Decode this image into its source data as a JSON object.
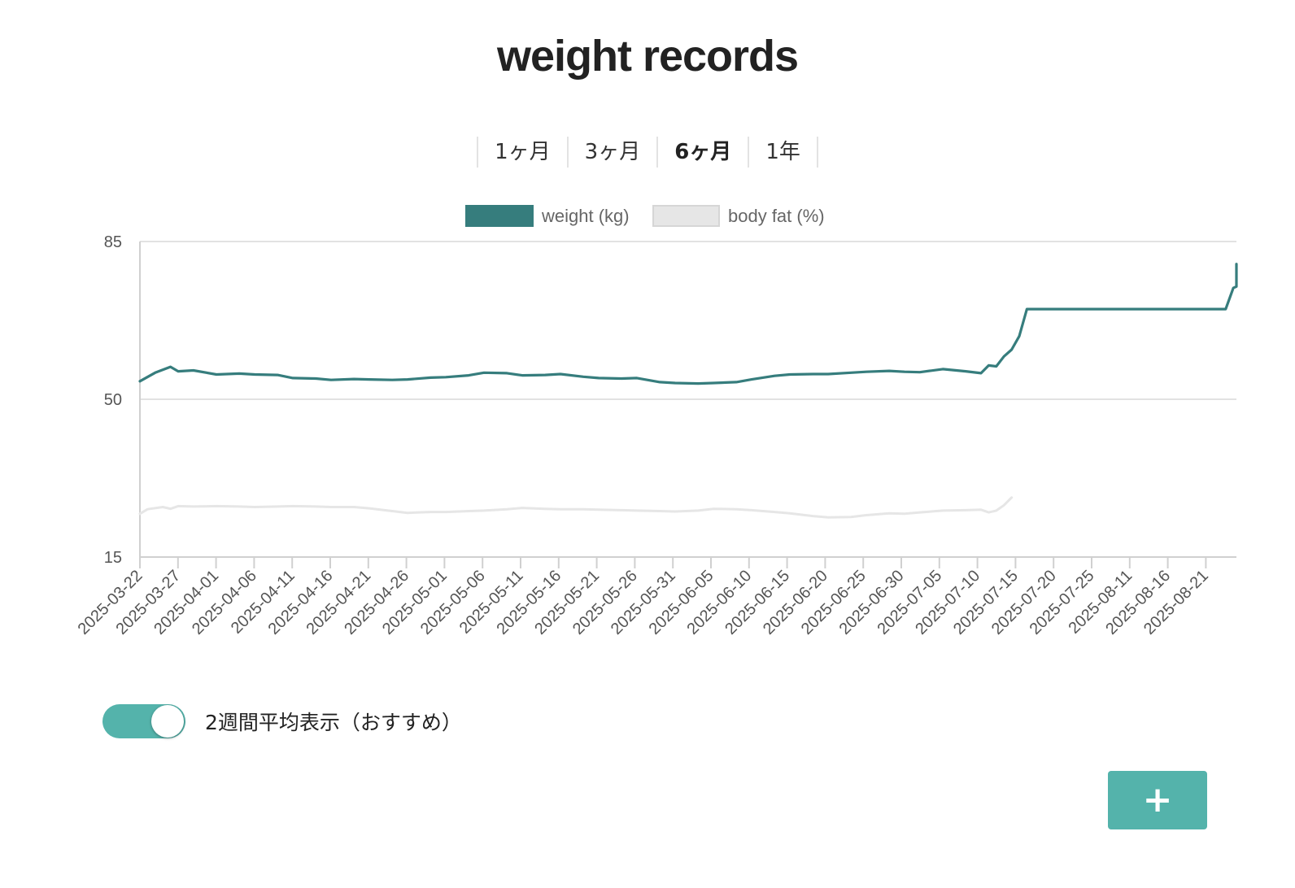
{
  "title": "weight records",
  "range_tabs": [
    {
      "label": "1ヶ月",
      "active": false
    },
    {
      "label": "3ヶ月",
      "active": false
    },
    {
      "label": "6ヶ月",
      "active": true
    },
    {
      "label": "1年",
      "active": false
    }
  ],
  "toggle": {
    "label": "2週間平均表示（おすすめ）",
    "on": true
  },
  "add_button": {
    "label": "+"
  },
  "colors": {
    "weight": "#367d7d",
    "body_fat": "#e6e6e6",
    "accent": "#54b3ab",
    "grid": "#e2e2e2"
  },
  "chart_data": {
    "type": "line",
    "title": "",
    "xlabel": "",
    "ylabel": "",
    "ylim": [
      15,
      85
    ],
    "yticks": [
      15,
      50,
      85
    ],
    "grid": true,
    "legend_position": "top",
    "x_tick_labels": [
      "2025-03-22",
      "2025-03-27",
      "2025-04-01",
      "2025-04-06",
      "2025-04-11",
      "2025-04-16",
      "2025-04-21",
      "2025-04-26",
      "2025-05-01",
      "2025-05-06",
      "2025-05-11",
      "2025-05-16",
      "2025-05-21",
      "2025-05-26",
      "2025-05-31",
      "2025-06-05",
      "2025-06-10",
      "2025-06-15",
      "2025-06-20",
      "2025-06-25",
      "2025-06-30",
      "2025-07-05",
      "2025-07-10",
      "2025-07-15",
      "2025-07-20",
      "2025-07-25",
      "2025-08-11",
      "2025-08-16",
      "2025-08-21"
    ],
    "series": [
      {
        "name": "weight (kg)",
        "points": [
          [
            "2025-03-22",
            54.0
          ],
          [
            "2025-03-24",
            55.9
          ],
          [
            "2025-03-26",
            57.2
          ],
          [
            "2025-03-27",
            56.2
          ],
          [
            "2025-03-29",
            56.4
          ],
          [
            "2025-04-01",
            55.5
          ],
          [
            "2025-04-04",
            55.7
          ],
          [
            "2025-04-06",
            55.5
          ],
          [
            "2025-04-09",
            55.4
          ],
          [
            "2025-04-11",
            54.7
          ],
          [
            "2025-04-14",
            54.6
          ],
          [
            "2025-04-16",
            54.3
          ],
          [
            "2025-04-19",
            54.5
          ],
          [
            "2025-04-21",
            54.4
          ],
          [
            "2025-04-24",
            54.3
          ],
          [
            "2025-04-26",
            54.4
          ],
          [
            "2025-04-29",
            54.8
          ],
          [
            "2025-05-01",
            54.9
          ],
          [
            "2025-05-04",
            55.3
          ],
          [
            "2025-05-06",
            55.9
          ],
          [
            "2025-05-09",
            55.8
          ],
          [
            "2025-05-11",
            55.3
          ],
          [
            "2025-05-14",
            55.4
          ],
          [
            "2025-05-16",
            55.6
          ],
          [
            "2025-05-19",
            55.0
          ],
          [
            "2025-05-21",
            54.7
          ],
          [
            "2025-05-24",
            54.6
          ],
          [
            "2025-05-26",
            54.7
          ],
          [
            "2025-05-29",
            53.8
          ],
          [
            "2025-05-31",
            53.6
          ],
          [
            "2025-06-03",
            53.5
          ],
          [
            "2025-06-05",
            53.6
          ],
          [
            "2025-06-08",
            53.8
          ],
          [
            "2025-06-10",
            54.4
          ],
          [
            "2025-06-13",
            55.2
          ],
          [
            "2025-06-15",
            55.5
          ],
          [
            "2025-06-18",
            55.6
          ],
          [
            "2025-06-20",
            55.6
          ],
          [
            "2025-06-23",
            55.9
          ],
          [
            "2025-06-25",
            56.1
          ],
          [
            "2025-06-28",
            56.3
          ],
          [
            "2025-06-30",
            56.1
          ],
          [
            "2025-07-02",
            56.0
          ],
          [
            "2025-07-05",
            56.7
          ],
          [
            "2025-07-08",
            56.2
          ],
          [
            "2025-07-10",
            55.8
          ],
          [
            "2025-07-11",
            57.5
          ],
          [
            "2025-07-12",
            57.3
          ],
          [
            "2025-07-13",
            59.5
          ],
          [
            "2025-07-14",
            61.0
          ],
          [
            "2025-07-15",
            64.0
          ],
          [
            "2025-07-16",
            70.0
          ],
          [
            "2025-07-17",
            70.0
          ],
          [
            "2025-07-20",
            70.0
          ],
          [
            "2025-07-25",
            70.0
          ],
          [
            "2025-08-11",
            70.0
          ],
          [
            "2025-08-12",
            74.7
          ],
          [
            "2025-08-13",
            75.0
          ],
          [
            "2025-08-20",
            75.0
          ],
          [
            "2025-08-21",
            79.9
          ],
          [
            "2025-08-22",
            80.0
          ],
          [
            "2025-08-29",
            80.0
          ]
        ]
      },
      {
        "name": "body fat (%)",
        "points": [
          [
            "2025-03-22",
            24.6
          ],
          [
            "2025-03-23",
            25.6
          ],
          [
            "2025-03-25",
            26.1
          ],
          [
            "2025-03-26",
            25.7
          ],
          [
            "2025-03-27",
            26.3
          ],
          [
            "2025-03-29",
            26.2
          ],
          [
            "2025-04-01",
            26.3
          ],
          [
            "2025-04-04",
            26.2
          ],
          [
            "2025-04-06",
            26.1
          ],
          [
            "2025-04-09",
            26.2
          ],
          [
            "2025-04-11",
            26.3
          ],
          [
            "2025-04-14",
            26.2
          ],
          [
            "2025-04-16",
            26.1
          ],
          [
            "2025-04-19",
            26.1
          ],
          [
            "2025-04-21",
            25.8
          ],
          [
            "2025-04-24",
            25.2
          ],
          [
            "2025-04-26",
            24.8
          ],
          [
            "2025-04-29",
            25.0
          ],
          [
            "2025-05-01",
            25.0
          ],
          [
            "2025-05-04",
            25.2
          ],
          [
            "2025-05-06",
            25.3
          ],
          [
            "2025-05-09",
            25.6
          ],
          [
            "2025-05-11",
            25.9
          ],
          [
            "2025-05-14",
            25.7
          ],
          [
            "2025-05-16",
            25.6
          ],
          [
            "2025-05-19",
            25.6
          ],
          [
            "2025-05-21",
            25.5
          ],
          [
            "2025-05-24",
            25.4
          ],
          [
            "2025-05-26",
            25.3
          ],
          [
            "2025-05-29",
            25.2
          ],
          [
            "2025-05-31",
            25.1
          ],
          [
            "2025-06-03",
            25.3
          ],
          [
            "2025-06-05",
            25.7
          ],
          [
            "2025-06-08",
            25.6
          ],
          [
            "2025-06-10",
            25.4
          ],
          [
            "2025-06-13",
            25.0
          ],
          [
            "2025-06-15",
            24.7
          ],
          [
            "2025-06-18",
            24.1
          ],
          [
            "2025-06-20",
            23.8
          ],
          [
            "2025-06-23",
            23.9
          ],
          [
            "2025-06-25",
            24.3
          ],
          [
            "2025-06-28",
            24.7
          ],
          [
            "2025-06-30",
            24.6
          ],
          [
            "2025-07-02",
            24.9
          ],
          [
            "2025-07-05",
            25.3
          ],
          [
            "2025-07-08",
            25.4
          ],
          [
            "2025-07-10",
            25.5
          ],
          [
            "2025-07-11",
            24.9
          ],
          [
            "2025-07-12",
            25.3
          ],
          [
            "2025-07-13",
            26.5
          ],
          [
            "2025-07-14",
            28.2
          ]
        ]
      }
    ]
  }
}
